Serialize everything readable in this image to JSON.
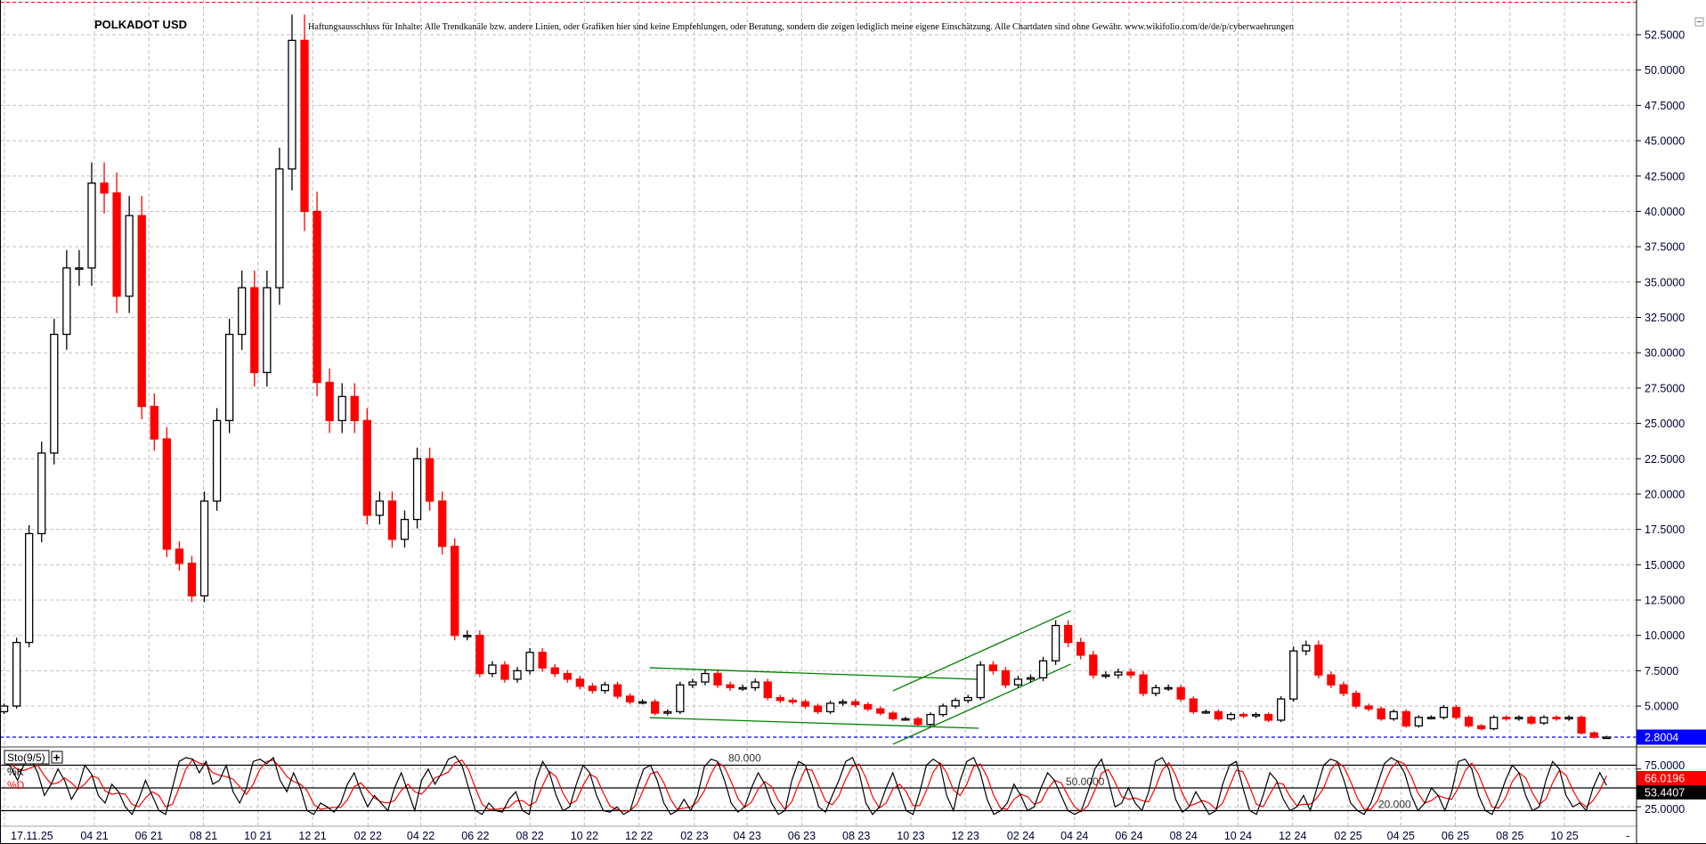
{
  "title": "POLKADOT USD",
  "disclaimer": "Haftungsausschluss für Inhalte: Alle Trendkanäle bzw. andere Linien, oder Grafiken hier sind keine Empfehlungen, oder Beratung, sondern die zeigen lediglich meine eigene Einschätzung. Alle Chartdaten sind ohne Gewähr.  www.wikifolio.com/de/de/p/cyberwaehrungen",
  "price_axis": {
    "ticks": [
      "52.5000",
      "50.0000",
      "47.5000",
      "45.0000",
      "42.5000",
      "40.0000",
      "37.5000",
      "35.0000",
      "32.5000",
      "30.0000",
      "27.5000",
      "25.0000",
      "22.5000",
      "20.0000",
      "17.5000",
      "15.0000",
      "12.5000",
      "10.0000",
      "7.5000",
      "5.0000"
    ],
    "last": "2.8004"
  },
  "x_axis": {
    "labels": [
      "17.11.25",
      "04 21",
      "06 21",
      "08 21",
      "10 21",
      "12 21",
      "02 22",
      "04 22",
      "06 22",
      "08 22",
      "10 22",
      "12 22",
      "02 23",
      "04 23",
      "06 23",
      "08 23",
      "10 23",
      "12 23",
      "02 24",
      "04 24",
      "06 24",
      "08 24",
      "10 24",
      "12 24",
      "02 25",
      "04 25",
      "06 25",
      "08 25",
      "10 25"
    ],
    "end_marker": "-"
  },
  "indicator": {
    "label": "Sto(9/5)",
    "add_button": "+",
    "k_label": "%K",
    "d_label": "%D",
    "levels": [
      80,
      50,
      20
    ],
    "level_labels": [
      "80.000",
      "50.0000",
      "20.000"
    ],
    "axis_labels": [
      "75.0000",
      "25.0000"
    ],
    "k_last": "53.4407",
    "d_last": "66.0196",
    "k": [
      85,
      78,
      60,
      82,
      88,
      70,
      40,
      55,
      75,
      60,
      35,
      50,
      80,
      68,
      40,
      30,
      55,
      45,
      25,
      15,
      35,
      60,
      40,
      20,
      15,
      50,
      85,
      90,
      88,
      70,
      85,
      55,
      60,
      80,
      45,
      30,
      50,
      85,
      88,
      82,
      90,
      60,
      45,
      70,
      50,
      20,
      15,
      30,
      25,
      18,
      30,
      55,
      70,
      45,
      25,
      40,
      30,
      20,
      50,
      70,
      45,
      20,
      60,
      75,
      55,
      70,
      88,
      92,
      80,
      50,
      20,
      15,
      30,
      20,
      18,
      35,
      45,
      20,
      15,
      60,
      85,
      70,
      40,
      20,
      25,
      55,
      80,
      70,
      40,
      20,
      18,
      25,
      15,
      20,
      50,
      75,
      80,
      60,
      30,
      15,
      20,
      35,
      20,
      40,
      78,
      88,
      85,
      60,
      30,
      18,
      25,
      50,
      70,
      55,
      30,
      15,
      20,
      60,
      85,
      80,
      55,
      25,
      18,
      40,
      60,
      85,
      90,
      70,
      30,
      15,
      25,
      50,
      70,
      45,
      20,
      15,
      45,
      80,
      88,
      82,
      40,
      20,
      60,
      85,
      90,
      70,
      35,
      15,
      20,
      30,
      55,
      40,
      20,
      25,
      50,
      70,
      60,
      40,
      20,
      15,
      20,
      45,
      75,
      88,
      60,
      25,
      30,
      50,
      30,
      20,
      45,
      85,
      90,
      75,
      35,
      18,
      25,
      45,
      30,
      15,
      20,
      55,
      80,
      85,
      50,
      20,
      15,
      40,
      70,
      60,
      35,
      20,
      25,
      40,
      20,
      50,
      80,
      88,
      85,
      60,
      30,
      20,
      15,
      30,
      55,
      82,
      90,
      85,
      70,
      40,
      20,
      30,
      50,
      40,
      20,
      45,
      85,
      88,
      75,
      40,
      20,
      15,
      35,
      60,
      80,
      70,
      40,
      20,
      25,
      60,
      85,
      75,
      40,
      25,
      30,
      20,
      50,
      70,
      53.44
    ]
  },
  "colors": {
    "up_candle": "#000000",
    "down_candle": "#ff0000",
    "trendline": "#008000",
    "last_price": "#0000ff",
    "k_line": "#000000",
    "d_line": "#ff0000",
    "high_line": "#ff0000"
  },
  "chart_data": {
    "type": "candlestick",
    "title": "POLKADOT USD",
    "ylim": [
      2.0,
      54.8
    ],
    "grid": true,
    "x": [
      "2020-12-21",
      "2021-01-04",
      "2021-01-18",
      "2021-02-01",
      "2021-02-15",
      "2021-03-01",
      "2021-03-15",
      "2021-03-29",
      "2021-04-12",
      "2021-04-26",
      "2021-05-10",
      "2021-05-24",
      "2021-06-07",
      "2021-06-21",
      "2021-07-05",
      "2021-07-19",
      "2021-08-02",
      "2021-08-16",
      "2021-08-30",
      "2021-09-13",
      "2021-09-27",
      "2021-10-11",
      "2021-10-25",
      "2021-11-08",
      "2021-11-22",
      "2021-12-06",
      "2021-12-20",
      "2022-01-03",
      "2022-01-17",
      "2022-01-31",
      "2022-02-14",
      "2022-02-28",
      "2022-03-14",
      "2022-03-28",
      "2022-04-11",
      "2022-04-25",
      "2022-05-09",
      "2022-05-23",
      "2022-06-06",
      "2022-06-20",
      "2022-07-04",
      "2022-07-18",
      "2022-08-01",
      "2022-08-15",
      "2022-08-29",
      "2022-09-12",
      "2022-09-26",
      "2022-10-10",
      "2022-10-24",
      "2022-11-07",
      "2022-11-21",
      "2022-12-05",
      "2022-12-19",
      "2023-01-02",
      "2023-01-16",
      "2023-01-30",
      "2023-02-13",
      "2023-02-27",
      "2023-03-13",
      "2023-03-27",
      "2023-04-10",
      "2023-04-24",
      "2023-05-08",
      "2023-05-22",
      "2023-06-05",
      "2023-06-19",
      "2023-07-03",
      "2023-07-17",
      "2023-07-31",
      "2023-08-14",
      "2023-08-28",
      "2023-09-11",
      "2023-09-25",
      "2023-10-09",
      "2023-10-23",
      "2023-11-06",
      "2023-11-20",
      "2023-12-04",
      "2023-12-18",
      "2024-01-01",
      "2024-01-15",
      "2024-01-29",
      "2024-02-12",
      "2024-02-26",
      "2024-03-11",
      "2024-03-25",
      "2024-04-08",
      "2024-04-22",
      "2024-05-06",
      "2024-05-20",
      "2024-06-03",
      "2024-06-17",
      "2024-07-01",
      "2024-07-15",
      "2024-07-29",
      "2024-08-12",
      "2024-08-26",
      "2024-09-09",
      "2024-09-23",
      "2024-10-07",
      "2024-10-21",
      "2024-11-04",
      "2024-11-18",
      "2024-12-02",
      "2024-12-16",
      "2024-12-30",
      "2025-01-13",
      "2025-01-27",
      "2025-02-10",
      "2025-02-24",
      "2025-03-10",
      "2025-03-24",
      "2025-04-07",
      "2025-04-21",
      "2025-05-05",
      "2025-05-19",
      "2025-06-02",
      "2025-06-16",
      "2025-06-30",
      "2025-07-14",
      "2025-07-28",
      "2025-08-11",
      "2025-08-25",
      "2025-09-08",
      "2025-09-22",
      "2025-10-06",
      "2025-10-20",
      "2025-11-03",
      "2025-11-17"
    ],
    "close": [
      5.0,
      9.5,
      17.2,
      22.9,
      31.3,
      36,
      36,
      42,
      41.3,
      34,
      39.7,
      26.2,
      23.9,
      16.1,
      15.1,
      12.8,
      19.5,
      25.2,
      31.3,
      34.6,
      28.6,
      34.6,
      43,
      52.1,
      40,
      27.9,
      25.2,
      26.9,
      25.2,
      18.5,
      19.5,
      16.8,
      18.2,
      22.5,
      19.5,
      16.3,
      10.0,
      10.0,
      7.3,
      7.9,
      6.9,
      7.5,
      8.8,
      7.7,
      7.3,
      6.9,
      6.4,
      6.1,
      6.5,
      5.7,
      5.3,
      5.3,
      4.5,
      4.6,
      6.5,
      6.7,
      7.3,
      6.5,
      6.3,
      6.3,
      6.7,
      5.6,
      5.4,
      5.3,
      5.0,
      4.6,
      5.2,
      5.3,
      5.1,
      4.8,
      4.5,
      4.1,
      4.1,
      3.7,
      4.4,
      5.0,
      5.4,
      5.6,
      7.9,
      7.5,
      6.5,
      6.9,
      7.0,
      8.2,
      10.7,
      9.5,
      8.6,
      7.2,
      7.2,
      7.4,
      7.2,
      5.9,
      6.3,
      6.3,
      5.5,
      4.6,
      4.6,
      4.1,
      4.4,
      4.3,
      4.4,
      4.0,
      5.5,
      8.9,
      9.3,
      7.2,
      6.5,
      5.9,
      5.0,
      4.8,
      4.1,
      4.6,
      3.6,
      4.2,
      4.2,
      4.9,
      4.2,
      3.6,
      3.4,
      4.2,
      4.1,
      4.2,
      3.8,
      4.2,
      4.1,
      4.2,
      3.1,
      2.8,
      2.8004
    ],
    "period_high": 54.8,
    "last_price": 2.8004,
    "trendlines": [
      [
        [
          "2022-12-13",
          7.71
        ],
        [
          "2023-12-16",
          6.89
        ]
      ],
      [
        [
          "2022-12-13",
          4.18
        ],
        [
          "2023-12-16",
          3.43
        ]
      ],
      [
        [
          "2023-09-11",
          2.3
        ],
        [
          "2024-03-28",
          7.97
        ]
      ],
      [
        [
          "2023-09-11",
          6.07
        ],
        [
          "2024-03-28",
          11.74
        ]
      ]
    ]
  }
}
